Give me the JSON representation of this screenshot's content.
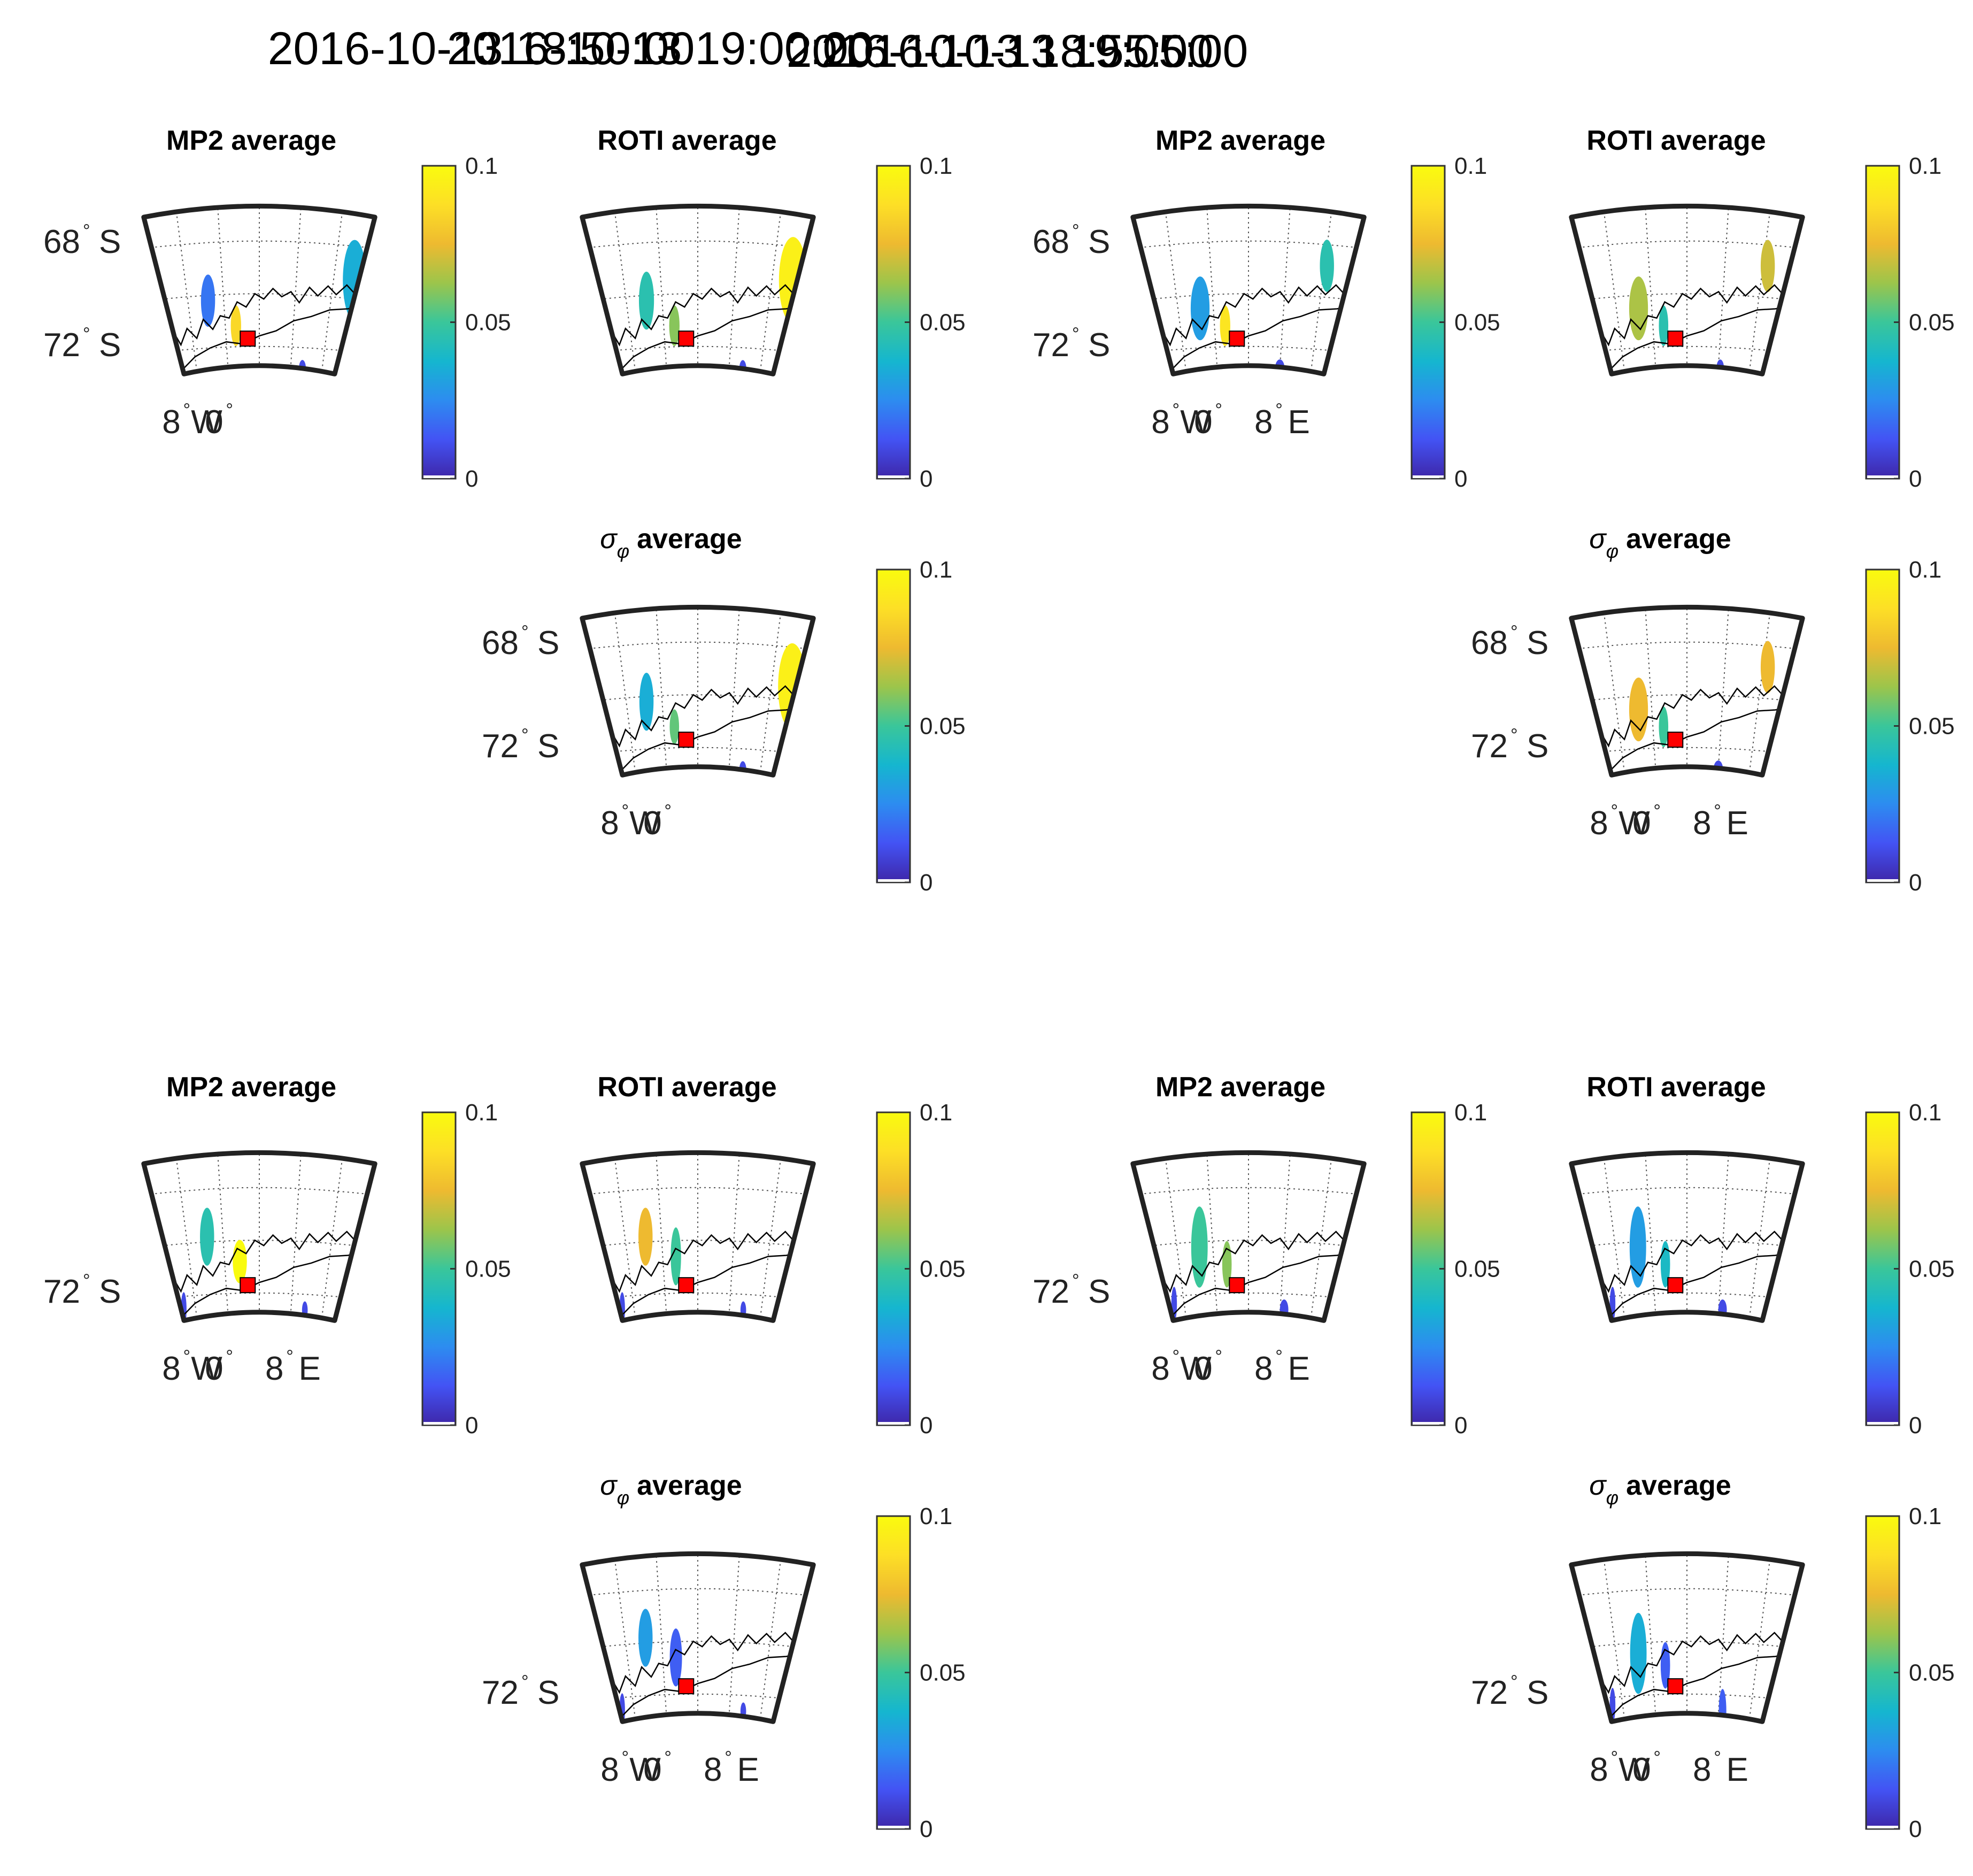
{
  "chart_data": {
    "type": "heatmap",
    "description_units": "scintillation index average (colour scale 0-0.1)",
    "colormap": "parula",
    "colorbar": {
      "min": 0,
      "max": 0.1,
      "ticks": [
        "0",
        "0.05",
        "0.1"
      ],
      "stops": [
        "#3e26a8",
        "#4353f4",
        "#2d8cf0",
        "#15b6cf",
        "#3ac69a",
        "#9cc54b",
        "#eeba30",
        "#fddf26",
        "#f9fb0e"
      ]
    },
    "sigma_symbol": "σ",
    "phi_symbol": "φ",
    "degree_symbol": "°",
    "marker_color": "#ff0000",
    "groups": [
      {
        "time": "2016-10-13 18:50:00",
        "panels": [
          {
            "title": "MP2 average",
            "lat_labels": [
              {
                "value": "68",
                "hemi": "S"
              },
              {
                "value": "72",
                "hemi": "S"
              }
            ],
            "lon_labels": [
              {
                "value": "8",
                "hemi": "W"
              },
              {
                "value": "0",
                "hemi": ""
              }
            ],
            "patches": [
              {
                "lon": 20.5,
                "lat": 69.3,
                "w": 5,
                "h": 2.8,
                "v": 0.035
              },
              {
                "lon": -11.5,
                "lat": 70.2,
                "w": 3,
                "h": 1.8,
                "v": 0.02
              },
              {
                "lon": -5.5,
                "lat": 71.2,
                "w": 2.2,
                "h": 1.4,
                "v": 0.085
              },
              {
                "lon": 11,
                "lat": 72.8,
                "w": 1.5,
                "h": 0.6,
                "v": 0.01
              }
            ]
          },
          {
            "title": "ROTI average",
            "lat_labels": [],
            "lon_labels": [],
            "patches": [
              {
                "lon": 20.5,
                "lat": 69.3,
                "w": 6,
                "h": 3,
                "v": 0.095
              },
              {
                "lon": -11.5,
                "lat": 70.2,
                "w": 3.2,
                "h": 2,
                "v": 0.045
              },
              {
                "lon": -5.5,
                "lat": 71.2,
                "w": 2.2,
                "h": 1.4,
                "v": 0.06
              },
              {
                "lon": 11.5,
                "lat": 72.8,
                "w": 1.5,
                "h": 0.6,
                "v": 0.01
              }
            ]
          },
          {
            "title_suffix": "average",
            "lat_labels": [
              {
                "value": "68",
                "hemi": "S"
              },
              {
                "value": "72",
                "hemi": "S"
              }
            ],
            "lon_labels": [
              {
                "value": "8",
                "hemi": "W"
              },
              {
                "value": "0",
                "hemi": ""
              }
            ],
            "patches": [
              {
                "lon": 20.5,
                "lat": 69.5,
                "w": 6,
                "h": 3,
                "v": 0.095
              },
              {
                "lon": -11.5,
                "lat": 70.2,
                "w": 3,
                "h": 2,
                "v": 0.035
              },
              {
                "lon": -5.5,
                "lat": 71.2,
                "w": 2,
                "h": 1.2,
                "v": 0.055
              },
              {
                "lon": 11.5,
                "lat": 72.8,
                "w": 1.5,
                "h": 0.6,
                "v": 0.01
              }
            ]
          }
        ]
      },
      {
        "time": "2016-10-13 18:55:00",
        "panels": [
          {
            "title": "MP2 average",
            "lat_labels": [
              {
                "value": "68",
                "hemi": "S"
              },
              {
                "value": "72",
                "hemi": "S"
              }
            ],
            "lon_labels": [
              {
                "value": "8",
                "hemi": "W"
              },
              {
                "value": "0",
                "hemi": ""
              },
              {
                "value": "8",
                "hemi": "E"
              }
            ],
            "patches": [
              {
                "lon": 16.5,
                "lat": 68.8,
                "w": 3,
                "h": 1.8,
                "v": 0.045
              },
              {
                "lon": -11,
                "lat": 70.5,
                "w": 4,
                "h": 2.2,
                "v": 0.03
              },
              {
                "lon": -5.5,
                "lat": 71.2,
                "w": 2.2,
                "h": 1.4,
                "v": 0.09
              },
              {
                "lon": 8,
                "lat": 72.8,
                "w": 2,
                "h": 0.6,
                "v": 0.01
              }
            ]
          },
          {
            "title": "ROTI average",
            "lat_labels": [],
            "lon_labels": [],
            "patches": [
              {
                "lon": 17,
                "lat": 68.8,
                "w": 3,
                "h": 1.8,
                "v": 0.07
              },
              {
                "lon": -11,
                "lat": 70.5,
                "w": 4,
                "h": 2.2,
                "v": 0.065
              },
              {
                "lon": -5.5,
                "lat": 71.2,
                "w": 2,
                "h": 1.4,
                "v": 0.045
              },
              {
                "lon": 8.5,
                "lat": 72.8,
                "w": 1.6,
                "h": 0.6,
                "v": 0.01
              }
            ]
          },
          {
            "title_suffix": "average",
            "lat_labels": [
              {
                "value": "68",
                "hemi": "S"
              },
              {
                "value": "72",
                "hemi": "S"
              }
            ],
            "lon_labels": [
              {
                "value": "8",
                "hemi": "W"
              },
              {
                "value": "0",
                "hemi": ""
              },
              {
                "value": "8",
                "hemi": "E"
              }
            ],
            "patches": [
              {
                "lon": 17,
                "lat": 68.8,
                "w": 3,
                "h": 1.8,
                "v": 0.075
              },
              {
                "lon": -11,
                "lat": 70.5,
                "w": 4,
                "h": 2.2,
                "v": 0.075
              },
              {
                "lon": -5.5,
                "lat": 71.2,
                "w": 2,
                "h": 1.4,
                "v": 0.05
              },
              {
                "lon": 8,
                "lat": 72.8,
                "w": 2,
                "h": 0.6,
                "v": 0.01
              }
            ]
          }
        ]
      },
      {
        "time": "2016-10-13 19:00:00",
        "panels": [
          {
            "title": "MP2 average",
            "lat_labels": [
              {
                "value": "72",
                "hemi": "S"
              }
            ],
            "lon_labels": [
              {
                "value": "8",
                "hemi": "W"
              },
              {
                "value": "0",
                "hemi": ""
              },
              {
                "value": "8",
                "hemi": "E"
              }
            ],
            "patches": [
              {
                "lon": -11.5,
                "lat": 69.8,
                "w": 3,
                "h": 2,
                "v": 0.045
              },
              {
                "lon": -4.5,
                "lat": 70.8,
                "w": 3,
                "h": 1.5,
                "v": 0.1
              },
              {
                "lon": -19,
                "lat": 72.5,
                "w": 1.2,
                "h": 1.2,
                "v": 0.01
              },
              {
                "lon": 11.5,
                "lat": 72.6,
                "w": 1.2,
                "h": 0.6,
                "v": 0.01
              }
            ]
          },
          {
            "title": "ROTI average",
            "lat_labels": [],
            "lon_labels": [],
            "patches": [
              {
                "lon": -11.5,
                "lat": 69.8,
                "w": 3,
                "h": 2,
                "v": 0.075
              },
              {
                "lon": -5,
                "lat": 70.6,
                "w": 2.2,
                "h": 2,
                "v": 0.05
              },
              {
                "lon": -19,
                "lat": 72.5,
                "w": 1.2,
                "h": 1.2,
                "v": 0.01
              },
              {
                "lon": 11.5,
                "lat": 72.6,
                "w": 1.2,
                "h": 0.6,
                "v": 0.01
              }
            ]
          },
          {
            "title_suffix": "average",
            "lat_labels": [
              {
                "value": "72",
                "hemi": "S"
              }
            ],
            "lon_labels": [
              {
                "value": "8",
                "hemi": "W"
              },
              {
                "value": "0",
                "hemi": ""
              },
              {
                "value": "8",
                "hemi": "E"
              }
            ],
            "patches": [
              {
                "lon": -11.5,
                "lat": 69.8,
                "w": 3,
                "h": 2,
                "v": 0.03
              },
              {
                "lon": -5,
                "lat": 70.6,
                "w": 2.6,
                "h": 2,
                "v": 0.015
              },
              {
                "lon": -19,
                "lat": 72.5,
                "w": 1.2,
                "h": 1.2,
                "v": 0.01
              },
              {
                "lon": 11.5,
                "lat": 72.6,
                "w": 1.2,
                "h": 0.6,
                "v": 0.01
              }
            ]
          }
        ]
      },
      {
        "time": "2016-10-13 19:05:00",
        "panels": [
          {
            "title": "MP2 average",
            "lat_labels": [
              {
                "value": "72",
                "hemi": "S"
              }
            ],
            "lon_labels": [
              {
                "value": "8",
                "hemi": "W"
              },
              {
                "value": "0",
                "hemi": ""
              },
              {
                "value": "8",
                "hemi": "E"
              }
            ],
            "patches": [
              {
                "lon": -11,
                "lat": 70.2,
                "w": 3.5,
                "h": 2.8,
                "v": 0.05
              },
              {
                "lon": -5,
                "lat": 70.9,
                "w": 2,
                "h": 1.6,
                "v": 0.06
              },
              {
                "lon": -18.5,
                "lat": 72.3,
                "w": 1.2,
                "h": 1.2,
                "v": 0.01
              },
              {
                "lon": 9,
                "lat": 72.6,
                "w": 1.8,
                "h": 0.7,
                "v": 0.01
              }
            ]
          },
          {
            "title": "ROTI average",
            "lat_labels": [],
            "lon_labels": [],
            "patches": [
              {
                "lon": -11,
                "lat": 70.2,
                "w": 3.5,
                "h": 2.8,
                "v": 0.03
              },
              {
                "lon": -5,
                "lat": 70.9,
                "w": 2,
                "h": 1.6,
                "v": 0.04
              },
              {
                "lon": -18.5,
                "lat": 72.3,
                "w": 1.2,
                "h": 1.2,
                "v": 0.01
              },
              {
                "lon": 9,
                "lat": 72.6,
                "w": 1.8,
                "h": 0.7,
                "v": 0.01
              }
            ]
          },
          {
            "title_suffix": "average",
            "lat_labels": [
              {
                "value": "72",
                "hemi": "S"
              }
            ],
            "lon_labels": [
              {
                "value": "8",
                "hemi": "W"
              },
              {
                "value": "0",
                "hemi": ""
              },
              {
                "value": "8",
                "hemi": "E"
              }
            ],
            "patches": [
              {
                "lon": -11,
                "lat": 70.4,
                "w": 3.5,
                "h": 2.8,
                "v": 0.035
              },
              {
                "lon": -5,
                "lat": 70.9,
                "w": 2,
                "h": 1.6,
                "v": 0.015
              },
              {
                "lon": -18.5,
                "lat": 72.3,
                "w": 1.2,
                "h": 1.2,
                "v": 0.01
              },
              {
                "lon": 9,
                "lat": 72.6,
                "w": 1.6,
                "h": 1.5,
                "v": 0.015
              }
            ]
          }
        ]
      }
    ]
  }
}
